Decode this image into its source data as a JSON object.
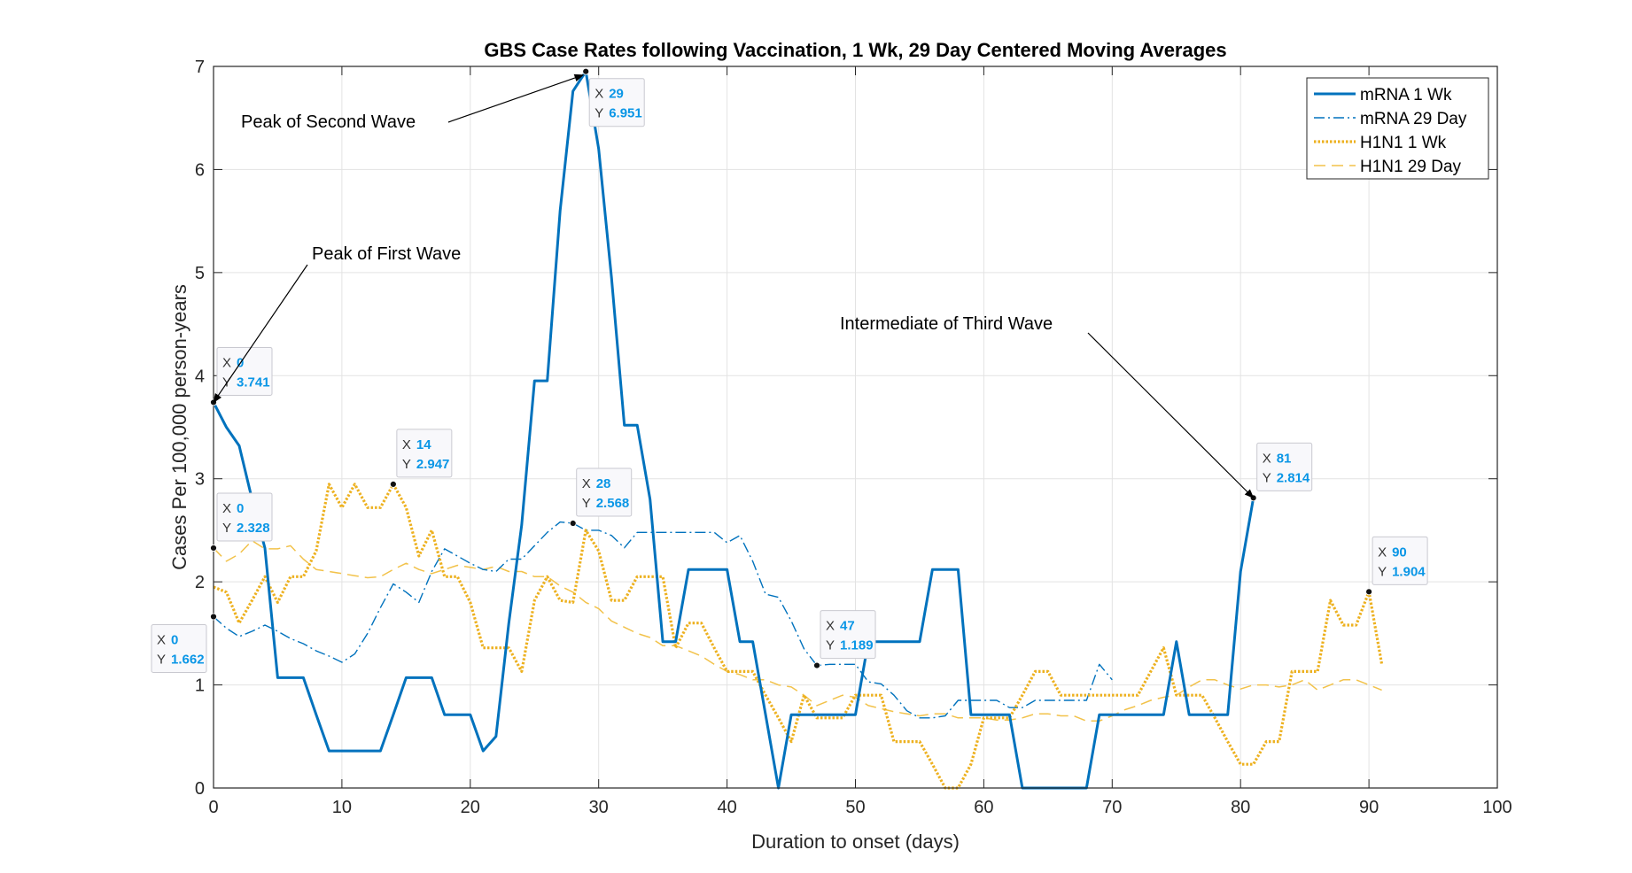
{
  "chart_data": {
    "type": "line",
    "title": "GBS Case Rates following Vaccination, 1 Wk, 29 Day Centered Moving Averages",
    "xlabel": "Duration to onset (days)",
    "ylabel": "Cases Per 100,000 person-years",
    "xlim": [
      0,
      100
    ],
    "ylim": [
      0,
      7
    ],
    "xticks": [
      0,
      10,
      20,
      30,
      40,
      50,
      60,
      70,
      80,
      90,
      100
    ],
    "yticks": [
      0,
      1,
      2,
      3,
      4,
      5,
      6,
      7
    ],
    "grid": true,
    "legend_position": "top-right",
    "colors": {
      "blue": "#0072BD",
      "gold": "#EDB120",
      "gold_light": "#F2C24A",
      "tip_value": "#0a96e6"
    },
    "series": [
      {
        "name": "mRNA 1 Wk",
        "style": "solid",
        "color": "#0072BD",
        "x": [
          0,
          1,
          2,
          3,
          4,
          5,
          6,
          7,
          8,
          9,
          10,
          11,
          12,
          13,
          14,
          15,
          16,
          17,
          18,
          19,
          20,
          21,
          22,
          23,
          24,
          25,
          26,
          27,
          28,
          29,
          30,
          31,
          32,
          33,
          34,
          35,
          36,
          37,
          38,
          39,
          40,
          41,
          42,
          43,
          44,
          45,
          46,
          47,
          48,
          49,
          50,
          51,
          52,
          53,
          54,
          55,
          56,
          57,
          58,
          59,
          60,
          61,
          62,
          63,
          64,
          65,
          66,
          67,
          68,
          69,
          70,
          71,
          72,
          73,
          74,
          75,
          76,
          77,
          78,
          79,
          80,
          81
        ],
        "y": [
          3.741,
          3.5,
          3.32,
          2.8,
          2.328,
          1.07,
          1.07,
          1.07,
          0.71,
          0.36,
          0.36,
          0.36,
          0.36,
          0.36,
          0.71,
          1.07,
          1.07,
          1.07,
          0.71,
          0.71,
          0.71,
          0.36,
          0.5,
          1.6,
          2.55,
          3.95,
          3.95,
          5.6,
          6.76,
          6.951,
          6.2,
          4.95,
          3.52,
          3.52,
          2.8,
          1.42,
          1.42,
          2.12,
          2.12,
          2.12,
          2.12,
          1.42,
          1.42,
          0.71,
          0.0,
          0.71,
          0.71,
          0.71,
          0.71,
          0.71,
          0.71,
          1.42,
          1.42,
          1.42,
          1.42,
          1.42,
          2.12,
          2.12,
          2.12,
          0.71,
          0.71,
          0.71,
          0.71,
          0.0,
          0.0,
          0.0,
          0.0,
          0.0,
          0.0,
          0.71,
          0.71,
          0.71,
          0.71,
          0.71,
          0.71,
          1.42,
          0.71,
          0.71,
          0.71,
          0.71,
          2.1,
          2.814
        ]
      },
      {
        "name": "mRNA 29 Day",
        "style": "dashdot",
        "color": "#0072BD",
        "x": [
          0,
          1,
          2,
          3,
          4,
          5,
          6,
          7,
          8,
          9,
          10,
          11,
          12,
          13,
          14,
          15,
          16,
          17,
          18,
          19,
          20,
          21,
          22,
          23,
          24,
          25,
          26,
          27,
          28,
          29,
          30,
          31,
          32,
          33,
          34,
          35,
          36,
          37,
          38,
          39,
          40,
          41,
          42,
          43,
          44,
          45,
          46,
          47,
          48,
          49,
          50,
          51,
          52,
          53,
          54,
          55,
          56,
          57,
          58,
          59,
          60,
          61,
          62,
          63,
          64,
          65,
          66,
          67,
          68,
          69,
          70
        ],
        "y": [
          1.662,
          1.55,
          1.47,
          1.52,
          1.58,
          1.52,
          1.45,
          1.4,
          1.33,
          1.28,
          1.22,
          1.3,
          1.5,
          1.75,
          1.98,
          1.9,
          1.8,
          2.1,
          2.32,
          2.25,
          2.18,
          2.12,
          2.1,
          2.22,
          2.22,
          2.35,
          2.48,
          2.58,
          2.568,
          2.5,
          2.5,
          2.45,
          2.33,
          2.48,
          2.48,
          2.48,
          2.48,
          2.48,
          2.48,
          2.48,
          2.38,
          2.45,
          2.2,
          1.88,
          1.85,
          1.62,
          1.35,
          1.189,
          1.2,
          1.2,
          1.2,
          1.03,
          1.01,
          0.9,
          0.75,
          0.68,
          0.68,
          0.7,
          0.85,
          0.85,
          0.85,
          0.85,
          0.78,
          0.78,
          0.85,
          0.85,
          0.85,
          0.85,
          0.85,
          1.2,
          1.05
        ]
      },
      {
        "name": "H1N1 1 Wk",
        "style": "dotted",
        "color": "#EDB120",
        "x": [
          0,
          1,
          2,
          3,
          4,
          5,
          6,
          7,
          8,
          9,
          10,
          11,
          12,
          13,
          14,
          15,
          16,
          17,
          18,
          19,
          20,
          21,
          22,
          23,
          24,
          25,
          26,
          27,
          28,
          29,
          30,
          31,
          32,
          33,
          34,
          35,
          36,
          37,
          38,
          39,
          40,
          41,
          42,
          43,
          44,
          45,
          46,
          47,
          48,
          49,
          50,
          51,
          52,
          53,
          54,
          55,
          56,
          57,
          58,
          59,
          60,
          61,
          62,
          63,
          64,
          65,
          66,
          67,
          68,
          69,
          70,
          71,
          72,
          73,
          74,
          75,
          76,
          77,
          78,
          79,
          80,
          81,
          82,
          83,
          84,
          85,
          86,
          87,
          88,
          89,
          90,
          91
        ],
        "y": [
          1.95,
          1.9,
          1.6,
          1.82,
          2.05,
          1.8,
          2.05,
          2.05,
          2.3,
          2.947,
          2.72,
          2.947,
          2.72,
          2.72,
          2.947,
          2.72,
          2.25,
          2.5,
          2.05,
          2.05,
          1.8,
          1.36,
          1.36,
          1.36,
          1.13,
          1.82,
          2.05,
          1.82,
          1.8,
          2.5,
          2.3,
          1.82,
          1.82,
          2.05,
          2.05,
          2.05,
          1.36,
          1.6,
          1.6,
          1.36,
          1.13,
          1.13,
          1.13,
          0.9,
          0.68,
          0.45,
          0.9,
          0.68,
          0.68,
          0.68,
          0.9,
          0.9,
          0.9,
          0.45,
          0.45,
          0.45,
          0.23,
          0.0,
          0.0,
          0.23,
          0.68,
          0.68,
          0.68,
          0.9,
          1.13,
          1.13,
          0.9,
          0.9,
          0.9,
          0.9,
          0.9,
          0.9,
          0.9,
          1.13,
          1.36,
          0.9,
          0.9,
          0.9,
          0.68,
          0.45,
          0.23,
          0.23,
          0.45,
          0.45,
          1.13,
          1.13,
          1.13,
          1.82,
          1.58,
          1.58,
          1.904,
          1.2
        ]
      },
      {
        "name": "H1N1 29 Day",
        "style": "dashed",
        "color": "#EDB120",
        "x": [
          0,
          1,
          2,
          3,
          4,
          5,
          6,
          7,
          8,
          9,
          10,
          11,
          12,
          13,
          14,
          15,
          16,
          17,
          18,
          19,
          20,
          21,
          22,
          23,
          24,
          25,
          26,
          27,
          28,
          29,
          30,
          31,
          32,
          33,
          34,
          35,
          36,
          37,
          38,
          39,
          40,
          41,
          42,
          43,
          44,
          45,
          46,
          47,
          48,
          49,
          50,
          51,
          52,
          53,
          54,
          55,
          56,
          57,
          58,
          59,
          60,
          61,
          62,
          63,
          64,
          65,
          66,
          67,
          68,
          69,
          70,
          71,
          72,
          73,
          74,
          75,
          76,
          77,
          78,
          79,
          80,
          81,
          82,
          83,
          84,
          85,
          86,
          87,
          88,
          89,
          90,
          91
        ],
        "y": [
          2.328,
          2.2,
          2.27,
          2.4,
          2.32,
          2.32,
          2.35,
          2.22,
          2.12,
          2.1,
          2.08,
          2.06,
          2.04,
          2.05,
          2.12,
          2.18,
          2.12,
          2.08,
          2.12,
          2.16,
          2.14,
          2.12,
          2.15,
          2.1,
          2.1,
          2.05,
          2.05,
          1.96,
          1.9,
          1.8,
          1.74,
          1.62,
          1.56,
          1.5,
          1.46,
          1.38,
          1.38,
          1.33,
          1.28,
          1.2,
          1.13,
          1.1,
          1.05,
          1.05,
          1.0,
          0.98,
          0.9,
          0.8,
          0.85,
          0.9,
          0.88,
          0.8,
          0.77,
          0.74,
          0.72,
          0.7,
          0.72,
          0.72,
          0.68,
          0.68,
          0.68,
          0.66,
          0.66,
          0.68,
          0.72,
          0.72,
          0.7,
          0.7,
          0.65,
          0.65,
          0.7,
          0.76,
          0.8,
          0.85,
          0.88,
          0.9,
          0.98,
          1.05,
          1.05,
          1.0,
          0.96,
          1.0,
          1.0,
          0.98,
          1.0,
          1.05,
          0.95,
          1.0,
          1.05,
          1.05,
          1.0,
          0.95
        ]
      }
    ],
    "datatips": [
      {
        "x": 0,
        "y": 3.741,
        "x_text": "0",
        "y_text": "3.741"
      },
      {
        "x": 0,
        "y": 2.328,
        "x_text": "0",
        "y_text": "2.328"
      },
      {
        "x": 0,
        "y": 1.662,
        "x_text": "0",
        "y_text": "1.662"
      },
      {
        "x": 14,
        "y": 2.947,
        "x_text": "14",
        "y_text": "2.947"
      },
      {
        "x": 28,
        "y": 2.568,
        "x_text": "28",
        "y_text": "2.568"
      },
      {
        "x": 29,
        "y": 6.951,
        "x_text": "29",
        "y_text": "6.951"
      },
      {
        "x": 47,
        "y": 1.189,
        "x_text": "47",
        "y_text": "1.189"
      },
      {
        "x": 81,
        "y": 2.814,
        "x_text": "81",
        "y_text": "2.814"
      },
      {
        "x": 90,
        "y": 1.904,
        "x_text": "90",
        "y_text": "1.904"
      }
    ],
    "annotations": [
      {
        "text": "Peak of First Wave",
        "target_x": 0,
        "target_y": 3.741
      },
      {
        "text": "Peak of Second Wave",
        "target_x": 29,
        "target_y": 6.951
      },
      {
        "text": "Intermediate of Third Wave",
        "target_x": 81,
        "target_y": 2.814
      }
    ]
  }
}
